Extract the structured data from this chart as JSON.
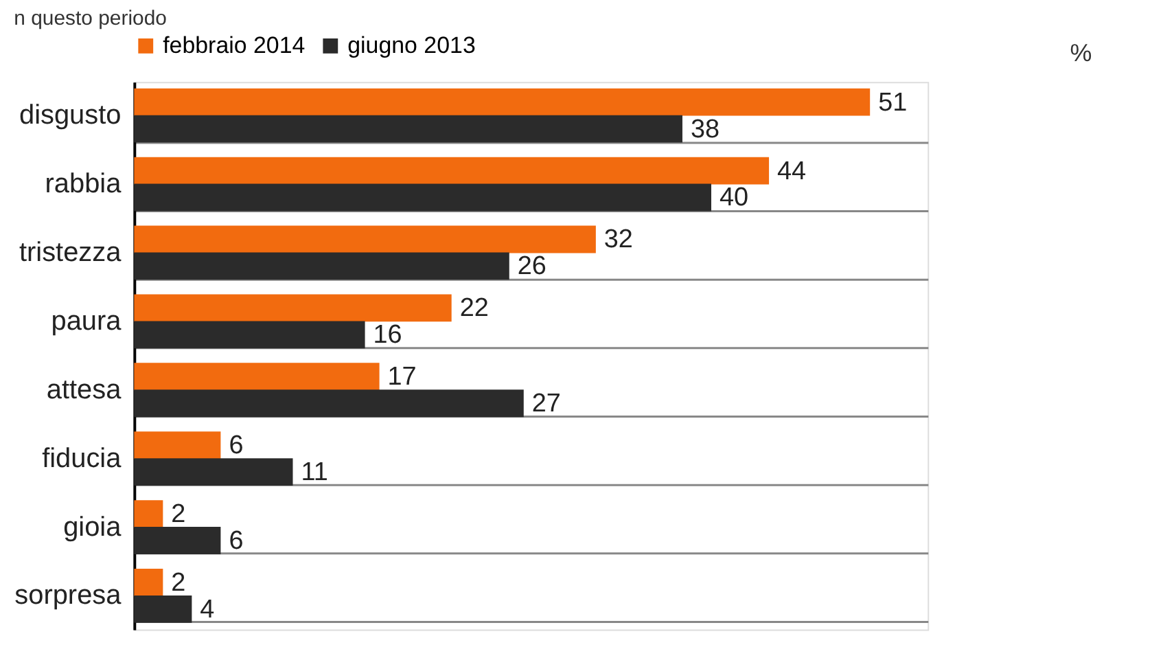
{
  "chart_data": {
    "type": "bar",
    "orientation": "horizontal",
    "title": "n questo periodo",
    "annotations": [
      "%"
    ],
    "categories": [
      "disgusto",
      "rabbia",
      "tristezza",
      "paura",
      "attesa",
      "fiducia",
      "gioia",
      "sorpresa"
    ],
    "series": [
      {
        "name": "febbraio 2014",
        "color": "#f26b0f",
        "values": [
          51,
          44,
          32,
          22,
          17,
          6,
          2,
          2
        ]
      },
      {
        "name": "giugno 2013",
        "color": "#2b2b2b",
        "values": [
          38,
          40,
          26,
          16,
          27,
          11,
          6,
          4
        ]
      }
    ],
    "data_labels": true,
    "legend": "top",
    "grid": "y"
  }
}
